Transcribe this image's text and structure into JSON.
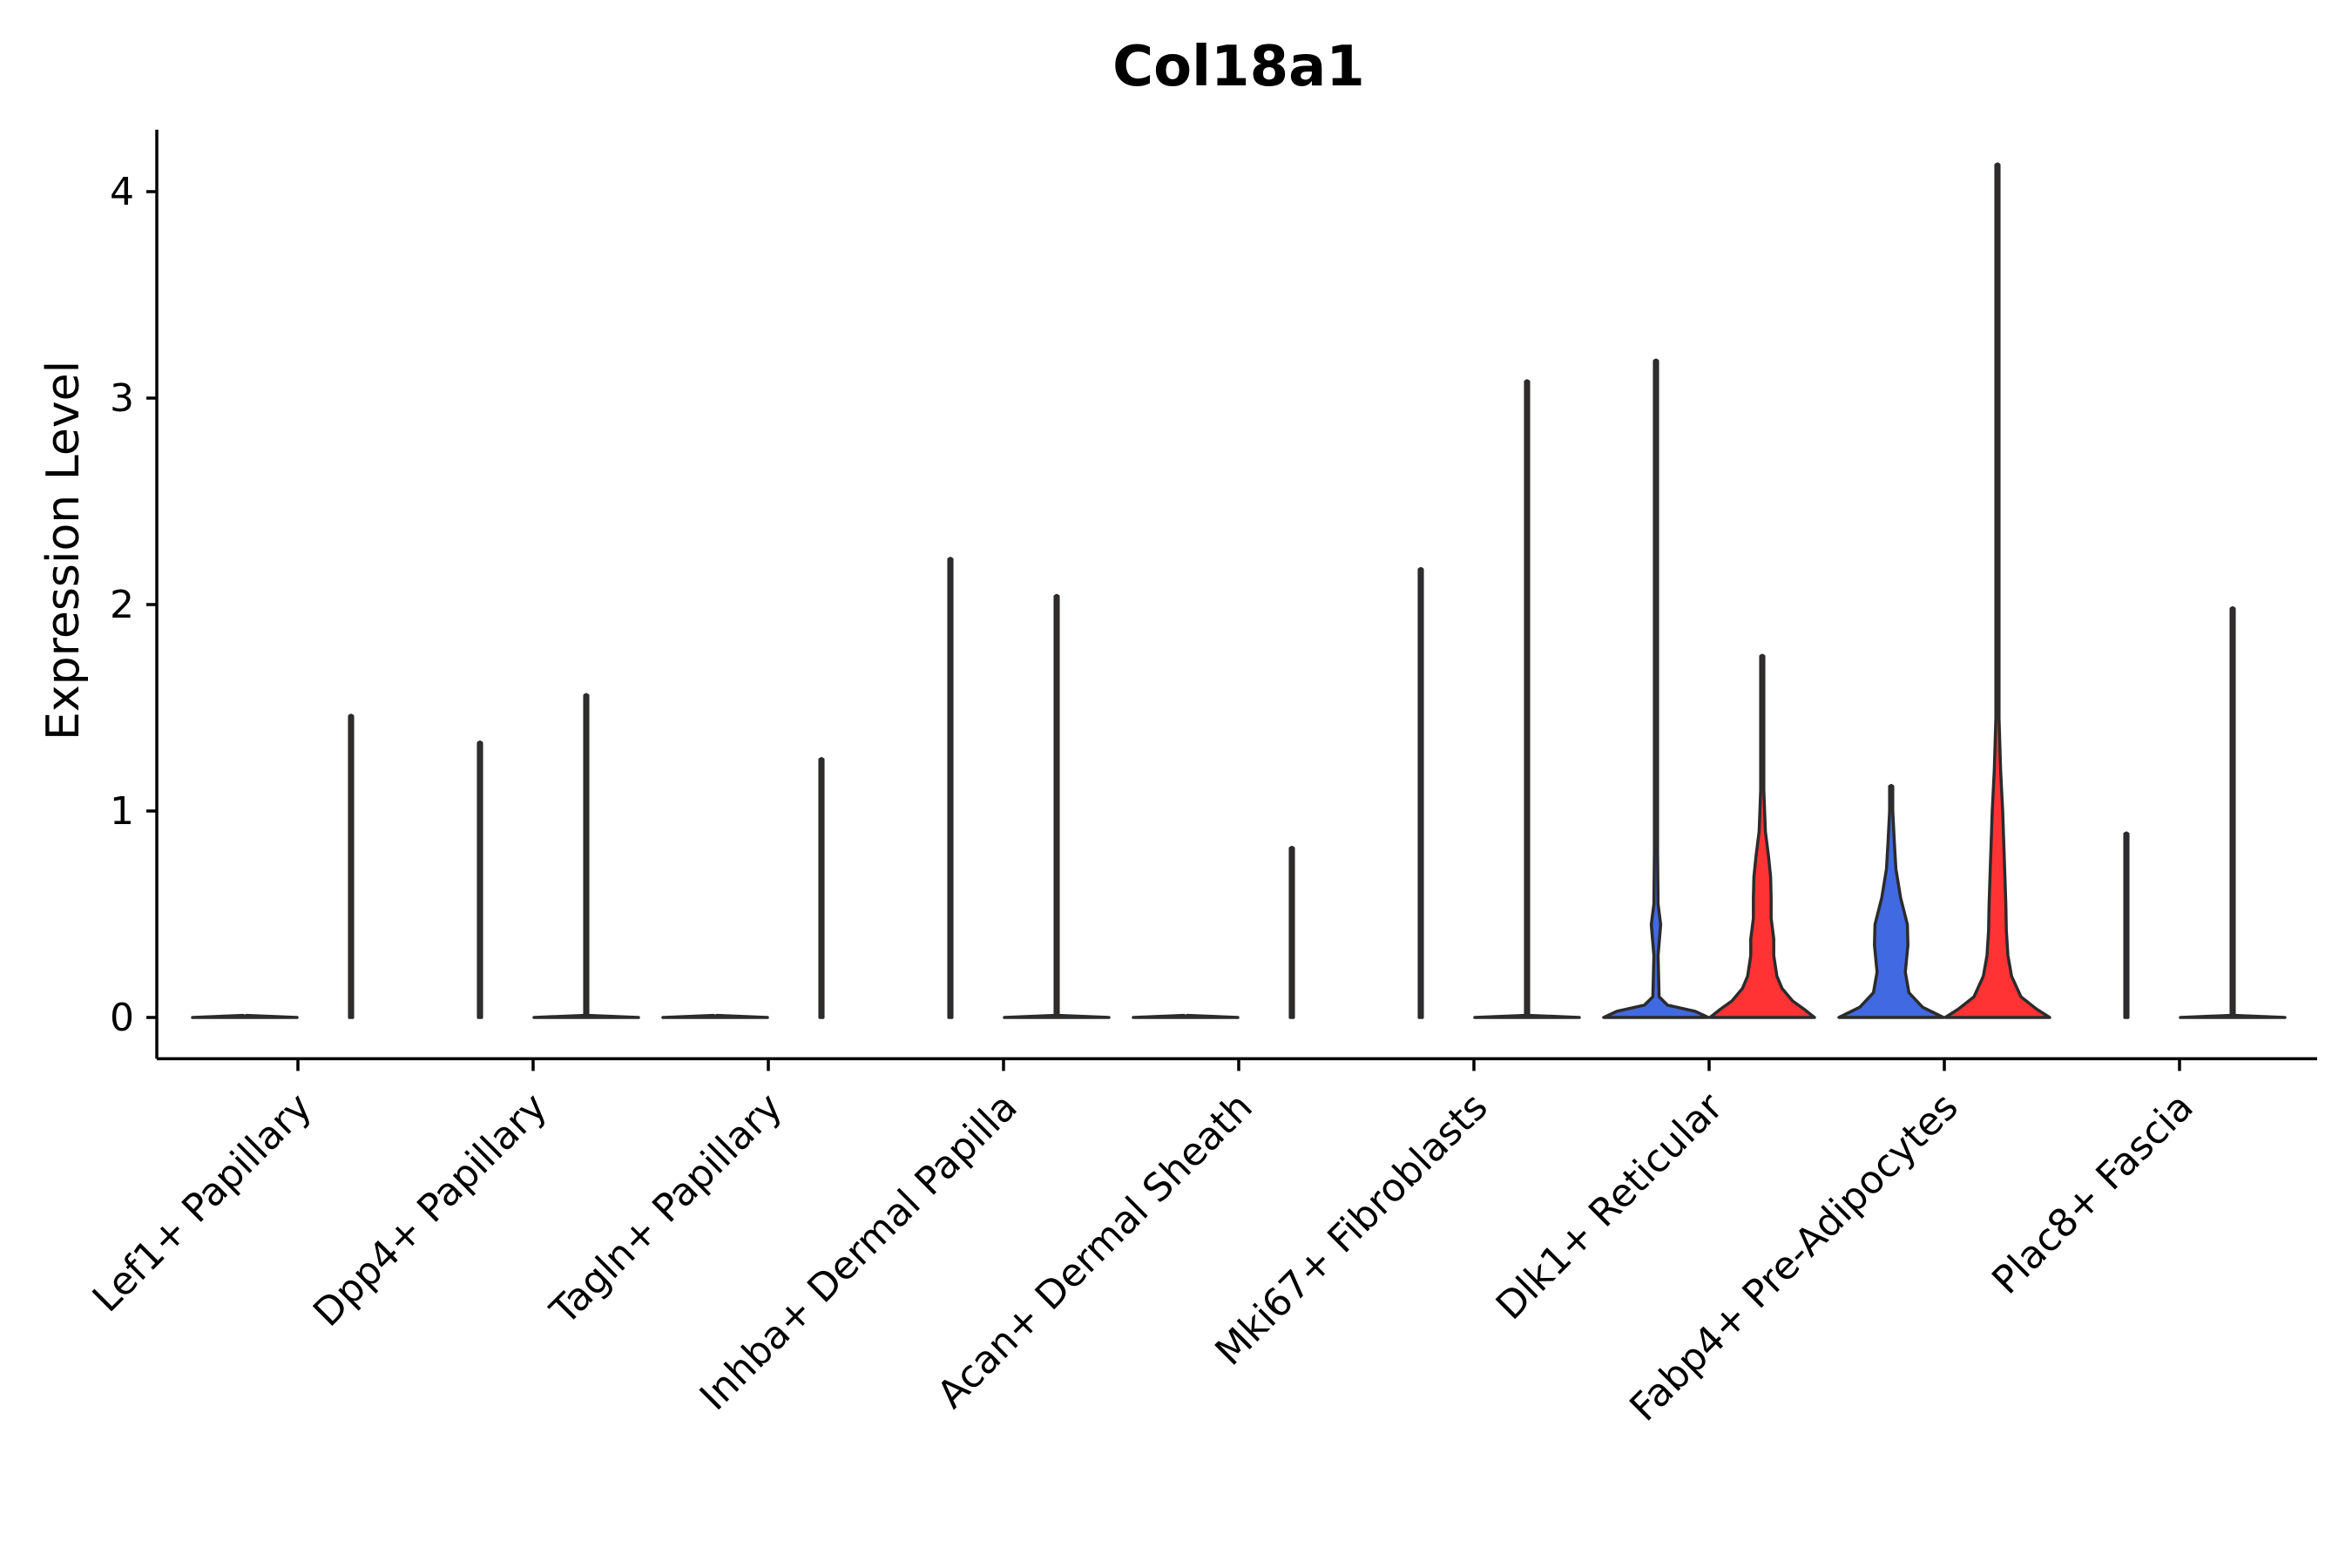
{
  "chart_data": {
    "type": "violin",
    "title": "Col18a1",
    "xlabel": "",
    "ylabel": "Expression Level",
    "ylim": [
      -0.2,
      4.3
    ],
    "yticks": [
      0,
      1,
      2,
      3,
      4
    ],
    "categories": [
      "Lef1+ Papillary",
      "Dpp4+ Papillary",
      "Tagln+ Papillary",
      "Inhba+ Dermal Papilla",
      "Acan+ Dermal Sheath",
      "Mki67+ Fibroblasts",
      "Dlk1+ Reticular",
      "Fabp4+ Pre-Adipocytes",
      "Plac8+ Fascia"
    ],
    "colors": {
      "group_a": "#4169e1",
      "group_b": "#ff3333",
      "outline": "#2b2b2b"
    },
    "series": [
      {
        "name": "group_a",
        "violins": [
          {
            "max": 0.0,
            "density": [
              [
                0,
                1.0
              ],
              [
                0.01,
                0.02
              ]
            ]
          },
          {
            "max": 1.33,
            "density": [
              [
                0,
                0.02
              ],
              [
                1.33,
                0.01
              ]
            ]
          },
          {
            "max": 0.0,
            "density": [
              [
                0,
                1.0
              ],
              [
                0.01,
                0.02
              ]
            ]
          },
          {
            "max": 2.22,
            "density": [
              [
                0,
                0.02
              ],
              [
                2.22,
                0.01
              ]
            ]
          },
          {
            "max": 0.0,
            "density": [
              [
                0,
                1.0
              ],
              [
                0.01,
                0.02
              ]
            ]
          },
          {
            "max": 2.17,
            "density": [
              [
                0,
                0.02
              ],
              [
                2.17,
                0.01
              ]
            ]
          },
          {
            "max": 3.18,
            "density": [
              [
                0,
                1.0
              ],
              [
                0.03,
                0.75
              ],
              [
                0.06,
                0.22
              ],
              [
                0.1,
                0.06
              ],
              [
                0.3,
                0.04
              ],
              [
                0.45,
                0.09
              ],
              [
                0.55,
                0.04
              ],
              [
                0.8,
                0.025
              ],
              [
                1.1,
                0.02
              ],
              [
                3.18,
                0.01
              ]
            ]
          },
          {
            "max": 1.12,
            "density": [
              [
                0,
                1.0
              ],
              [
                0.05,
                0.6
              ],
              [
                0.12,
                0.34
              ],
              [
                0.22,
                0.27
              ],
              [
                0.35,
                0.32
              ],
              [
                0.45,
                0.31
              ],
              [
                0.58,
                0.18
              ],
              [
                0.72,
                0.09
              ],
              [
                0.85,
                0.06
              ],
              [
                1.0,
                0.03
              ],
              [
                1.12,
                0.01
              ]
            ]
          },
          {
            "max": 0.89,
            "density": [
              [
                0,
                0.02
              ],
              [
                0.89,
                0.01
              ]
            ]
          }
        ]
      },
      {
        "name": "group_b",
        "violins": [
          {
            "max": 1.46,
            "density": [
              [
                0,
                0.02
              ],
              [
                1.46,
                0.01
              ]
            ]
          },
          {
            "max": 1.56,
            "density": [
              [
                0,
                1.0
              ],
              [
                0.01,
                0.02
              ],
              [
                1.56,
                0.01
              ]
            ]
          },
          {
            "max": 1.25,
            "density": [
              [
                0,
                0.02
              ],
              [
                1.25,
                0.01
              ]
            ]
          },
          {
            "max": 2.04,
            "density": [
              [
                0,
                1.0
              ],
              [
                0.01,
                0.02
              ],
              [
                2.04,
                0.01
              ]
            ]
          },
          {
            "max": 0.82,
            "density": [
              [
                0,
                0.02
              ],
              [
                0.82,
                0.01
              ]
            ]
          },
          {
            "max": 3.08,
            "density": [
              [
                0,
                1.0
              ],
              [
                0.01,
                0.02
              ],
              [
                3.08,
                0.01
              ]
            ]
          },
          {
            "max": 1.75,
            "density": [
              [
                0,
                1.0
              ],
              [
                0.04,
                0.8
              ],
              [
                0.08,
                0.58
              ],
              [
                0.14,
                0.38
              ],
              [
                0.2,
                0.28
              ],
              [
                0.3,
                0.22
              ],
              [
                0.38,
                0.22
              ],
              [
                0.48,
                0.17
              ],
              [
                0.58,
                0.17
              ],
              [
                0.68,
                0.16
              ],
              [
                0.78,
                0.12
              ],
              [
                0.9,
                0.06
              ],
              [
                1.1,
                0.03
              ],
              [
                1.75,
                0.01
              ]
            ]
          },
          {
            "max": 4.13,
            "density": [
              [
                0,
                1.0
              ],
              [
                0.04,
                0.75
              ],
              [
                0.1,
                0.45
              ],
              [
                0.2,
                0.27
              ],
              [
                0.3,
                0.2
              ],
              [
                0.42,
                0.17
              ],
              [
                0.55,
                0.16
              ],
              [
                0.7,
                0.14
              ],
              [
                0.85,
                0.12
              ],
              [
                1.0,
                0.1
              ],
              [
                1.2,
                0.06
              ],
              [
                1.45,
                0.03
              ],
              [
                2.0,
                0.02
              ],
              [
                4.13,
                0.01
              ]
            ]
          },
          {
            "max": 1.98,
            "density": [
              [
                0,
                1.0
              ],
              [
                0.01,
                0.02
              ],
              [
                1.98,
                0.01
              ]
            ]
          }
        ]
      }
    ]
  }
}
